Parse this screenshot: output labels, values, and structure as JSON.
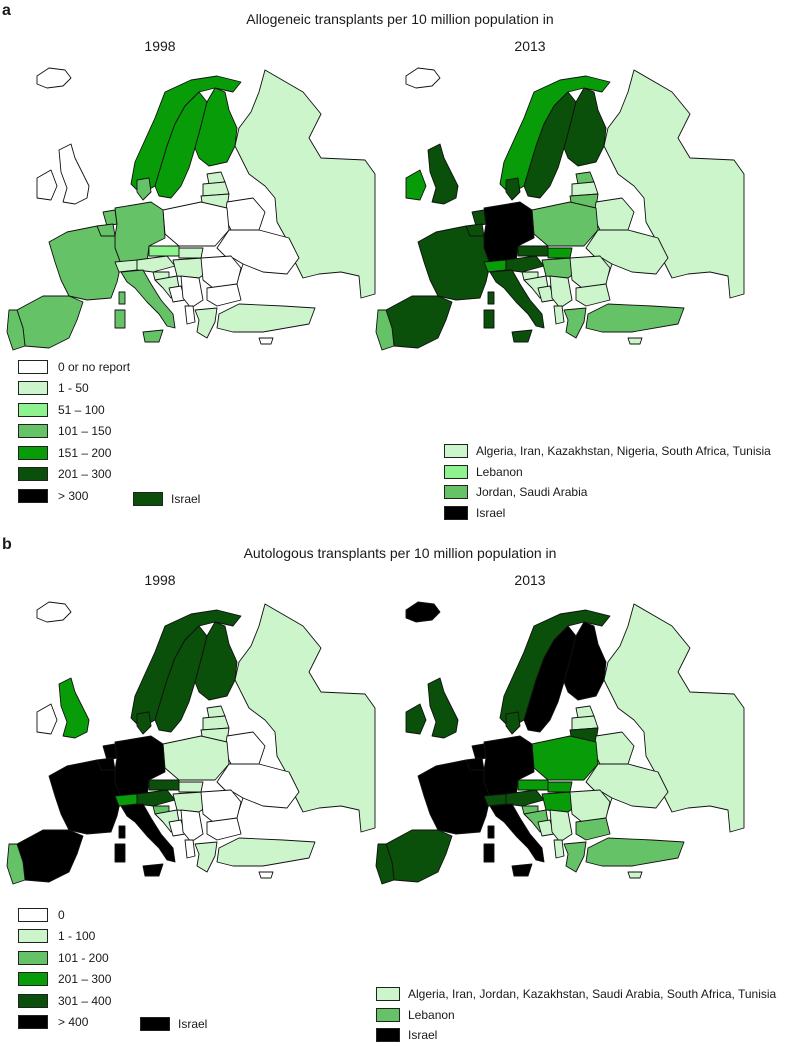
{
  "colors": {
    "c0": "#ffffff",
    "c1": "#ccf5cc",
    "c2": "#8ef28e",
    "c3": "#66c266",
    "c4": "#099c09",
    "c5": "#0a4f0a",
    "c6": "#000000",
    "sea": "#ffffff",
    "border": "#111111"
  },
  "panel_a": {
    "letter": "a",
    "title": "Allogeneic transplants per 10 million population in",
    "years": [
      "1998",
      "2013"
    ],
    "legend": [
      {
        "label": "0 or no report",
        "color": "#ffffff"
      },
      {
        "label": "1 - 50",
        "color": "#ccf5cc"
      },
      {
        "label": "51 – 100",
        "color": "#8ef28e"
      },
      {
        "label": "101 – 150",
        "color": "#66c266"
      },
      {
        "label": "151 – 200",
        "color": "#099c09"
      },
      {
        "label": "201 – 300",
        "color": "#0a4f0a"
      },
      {
        "label": "> 300",
        "color": "#000000"
      }
    ],
    "israel_1998": {
      "label": "Israel",
      "color": "#0a4f0a"
    },
    "extra_2013": [
      {
        "label": "Algeria, Iran, Kazakhstan, Nigeria, South Africa, Tunisia",
        "color": "#ccf5cc"
      },
      {
        "label": "Lebanon",
        "color": "#8ef28e"
      },
      {
        "label": "Jordan, Saudi Arabia",
        "color": "#66c266"
      },
      {
        "label": "Israel",
        "color": "#000000"
      }
    ]
  },
  "panel_b": {
    "letter": "b",
    "title": "Autologous transplants per 10 million population in",
    "years": [
      "1998",
      "2013"
    ],
    "legend": [
      {
        "label": "0",
        "color": "#ffffff"
      },
      {
        "label": "1 - 100",
        "color": "#ccf5cc"
      },
      {
        "label": "101 - 200",
        "color": "#66c266"
      },
      {
        "label": "201 – 300",
        "color": "#099c09"
      },
      {
        "label": "301 – 400",
        "color": "#0a4f0a"
      },
      {
        "label": "> 400",
        "color": "#000000"
      }
    ],
    "israel_1998": {
      "label": "Israel",
      "color": "#000000"
    },
    "extra_2013": [
      {
        "label": "Algeria, Iran, Jordan, Kazakhstan, Saudi Arabia, South Africa, Tunisia",
        "color": "#ccf5cc"
      },
      {
        "label": "Lebanon",
        "color": "#66c266"
      },
      {
        "label": "Israel",
        "color": "#000000"
      }
    ]
  },
  "maps": {
    "a1998": {
      "iceland": "#ffffff",
      "ireland": "#ffffff",
      "uk": "#ffffff",
      "norway": "#099c09",
      "sweden": "#099c09",
      "finland": "#099c09",
      "denmark": "#66c266",
      "estonia": "#ccf5cc",
      "latvia": "#ccf5cc",
      "lithuania": "#ccf5cc",
      "russia": "#ccf5cc",
      "belarus": "#ffffff",
      "ukraine": "#ffffff",
      "moldova": "#ffffff",
      "poland": "#ffffff",
      "germany": "#66c266",
      "netherlands": "#66c266",
      "belgium": "#66c266",
      "france": "#66c266",
      "spain": "#66c266",
      "portugal": "#66c266",
      "switzerland": "#ccf5cc",
      "austria": "#ccf5cc",
      "czech": "#8ef28e",
      "slovakia": "#ccf5cc",
      "hungary": "#ccf5cc",
      "italy": "#66c266",
      "slovenia": "#ccf5cc",
      "croatia": "#ccf5cc",
      "bosnia": "#ffffff",
      "serbia": "#ffffff",
      "romania": "#ffffff",
      "bulgaria": "#ffffff",
      "albania": "#ffffff",
      "greece": "#ccf5cc",
      "turkey": "#ccf5cc",
      "cyprus": "#ffffff",
      "sardinia": "#66c266",
      "sicily": "#66c266",
      "corsica": "#66c266"
    },
    "a2013": {
      "iceland": "#ffffff",
      "ireland": "#099c09",
      "uk": "#0a4f0a",
      "norway": "#099c09",
      "sweden": "#0a4f0a",
      "finland": "#0a4f0a",
      "denmark": "#0a4f0a",
      "estonia": "#66c266",
      "latvia": "#ccf5cc",
      "lithuania": "#66c266",
      "russia": "#ccf5cc",
      "belarus": "#ccf5cc",
      "ukraine": "#ccf5cc",
      "moldova": "#ccf5cc",
      "poland": "#66c266",
      "germany": "#000000",
      "netherlands": "#0a4f0a",
      "belgium": "#0a4f0a",
      "france": "#0a4f0a",
      "spain": "#0a4f0a",
      "portugal": "#66c266",
      "switzerland": "#099c09",
      "austria": "#0a4f0a",
      "czech": "#0a4f0a",
      "slovakia": "#099c09",
      "hungary": "#66c266",
      "italy": "#0a4f0a",
      "slovenia": "#ccf5cc",
      "croatia": "#ccf5cc",
      "bosnia": "#ccf5cc",
      "serbia": "#ccf5cc",
      "romania": "#ccf5cc",
      "bulgaria": "#ccf5cc",
      "albania": "#ccf5cc",
      "greece": "#66c266",
      "turkey": "#66c266",
      "cyprus": "#ccf5cc",
      "sardinia": "#0a4f0a",
      "sicily": "#0a4f0a",
      "corsica": "#0a4f0a"
    },
    "b1998": {
      "iceland": "#ffffff",
      "ireland": "#ffffff",
      "uk": "#099c09",
      "norway": "#0a4f0a",
      "sweden": "#0a4f0a",
      "finland": "#0a4f0a",
      "denmark": "#0a4f0a",
      "estonia": "#ccf5cc",
      "latvia": "#ccf5cc",
      "lithuania": "#ccf5cc",
      "russia": "#ccf5cc",
      "belarus": "#ffffff",
      "ukraine": "#ffffff",
      "moldova": "#ffffff",
      "poland": "#ccf5cc",
      "germany": "#000000",
      "netherlands": "#000000",
      "belgium": "#000000",
      "france": "#000000",
      "spain": "#000000",
      "portugal": "#66c266",
      "switzerland": "#099c09",
      "austria": "#0a4f0a",
      "czech": "#0a4f0a",
      "slovakia": "#ccf5cc",
      "hungary": "#ccf5cc",
      "italy": "#000000",
      "slovenia": "#66c266",
      "croatia": "#ccf5cc",
      "bosnia": "#ffffff",
      "serbia": "#ffffff",
      "romania": "#ffffff",
      "bulgaria": "#ffffff",
      "albania": "#ffffff",
      "greece": "#ccf5cc",
      "turkey": "#ccf5cc",
      "cyprus": "#ffffff",
      "sardinia": "#000000",
      "sicily": "#000000",
      "corsica": "#000000"
    },
    "b2013": {
      "iceland": "#000000",
      "ireland": "#0a4f0a",
      "uk": "#0a4f0a",
      "norway": "#0a4f0a",
      "sweden": "#000000",
      "finland": "#000000",
      "denmark": "#0a4f0a",
      "estonia": "#ccf5cc",
      "latvia": "#ccf5cc",
      "lithuania": "#0a4f0a",
      "russia": "#ccf5cc",
      "belarus": "#ccf5cc",
      "ukraine": "#ccf5cc",
      "moldova": "#ccf5cc",
      "poland": "#099c09",
      "germany": "#000000",
      "netherlands": "#000000",
      "belgium": "#000000",
      "france": "#000000",
      "spain": "#0a4f0a",
      "portugal": "#0a4f0a",
      "switzerland": "#0a4f0a",
      "austria": "#0a4f0a",
      "czech": "#099c09",
      "slovakia": "#099c09",
      "hungary": "#099c09",
      "italy": "#000000",
      "slovenia": "#66c266",
      "croatia": "#66c266",
      "bosnia": "#ccf5cc",
      "serbia": "#ccf5cc",
      "romania": "#ccf5cc",
      "bulgaria": "#66c266",
      "albania": "#ccf5cc",
      "greece": "#66c266",
      "turkey": "#66c266",
      "cyprus": "#ccf5cc",
      "sardinia": "#000000",
      "sicily": "#000000",
      "corsica": "#000000"
    }
  }
}
